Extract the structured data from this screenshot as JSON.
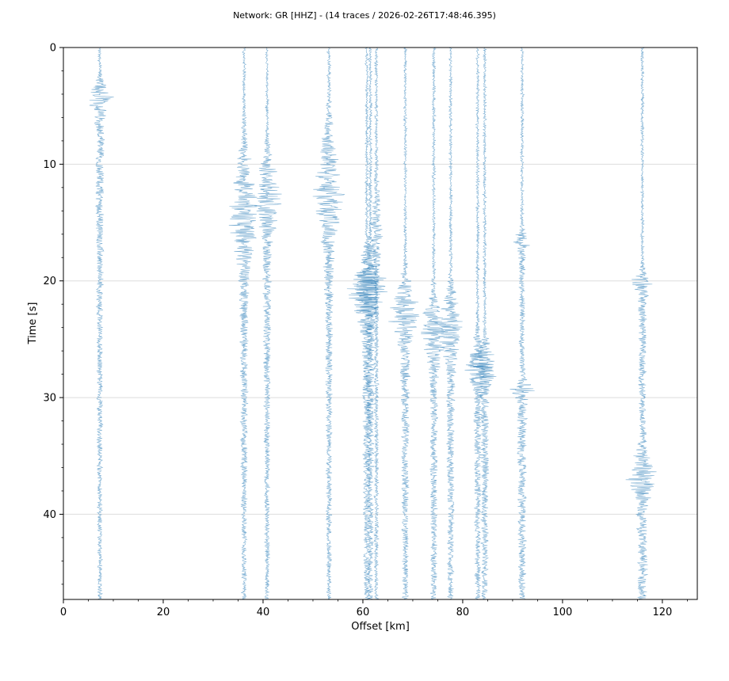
{
  "chart_data": {
    "type": "seismic-section",
    "title": "Network: GR [HHZ] - (14 traces / 2026-02-26T17:48:46.395)",
    "xlabel": "Offset [km]",
    "ylabel": "Time [s]",
    "xlim": [
      0,
      127
    ],
    "ylim": [
      0,
      47.3
    ],
    "y_inverted": true,
    "xticks": [
      0,
      20,
      40,
      60,
      80,
      100,
      120
    ],
    "yticks": [
      0,
      10,
      20,
      30,
      40
    ],
    "grid": true,
    "trace_color": "#1f77b4",
    "n_traces": 14,
    "traces": [
      {
        "offset": 7.3,
        "events": [
          {
            "time": 4.0,
            "amplitude": 4.0,
            "duration": 2.0
          }
        ]
      },
      {
        "offset": 36.2,
        "events": [
          {
            "time": 13.5,
            "amplitude": 4.5,
            "duration": 7.0
          }
        ]
      },
      {
        "offset": 40.8,
        "events": [
          {
            "time": 12.5,
            "amplitude": 4.0,
            "duration": 5.0
          }
        ]
      },
      {
        "offset": 53.2,
        "events": [
          {
            "time": 12.0,
            "amplitude": 4.0,
            "duration": 8.0
          }
        ]
      },
      {
        "offset": 60.8,
        "events": [
          {
            "time": 20.5,
            "amplitude": 5.0,
            "duration": 4.5
          }
        ]
      },
      {
        "offset": 61.5,
        "events": [
          {
            "time": 20.0,
            "amplitude": 4.5,
            "duration": 4.0
          }
        ]
      },
      {
        "offset": 62.7,
        "events": [
          {
            "time": 15.0,
            "amplitude": 1.5,
            "duration": 5.0
          }
        ]
      },
      {
        "offset": 68.5,
        "events": [
          {
            "time": 22.5,
            "amplitude": 4.5,
            "duration": 4.0
          }
        ]
      },
      {
        "offset": 74.2,
        "events": [
          {
            "time": 24.0,
            "amplitude": 4.0,
            "duration": 4.0
          }
        ]
      },
      {
        "offset": 77.6,
        "events": [
          {
            "time": 23.5,
            "amplitude": 4.0,
            "duration": 4.0
          }
        ]
      },
      {
        "offset": 83.0,
        "events": [
          {
            "time": 27.0,
            "amplitude": 3.5,
            "duration": 3.0
          }
        ]
      },
      {
        "offset": 84.4,
        "events": [
          {
            "time": 27.0,
            "amplitude": 4.0,
            "duration": 3.0
          }
        ]
      },
      {
        "offset": 91.9,
        "events": [
          {
            "time": 16.5,
            "amplitude": 2.0,
            "duration": 1.5
          },
          {
            "time": 29.2,
            "amplitude": 3.5,
            "duration": 1.2
          }
        ]
      },
      {
        "offset": 116.0,
        "events": [
          {
            "time": 20.0,
            "amplitude": 3.5,
            "duration": 1.5
          },
          {
            "time": 36.5,
            "amplitude": 4.0,
            "duration": 3.0
          }
        ]
      }
    ]
  }
}
